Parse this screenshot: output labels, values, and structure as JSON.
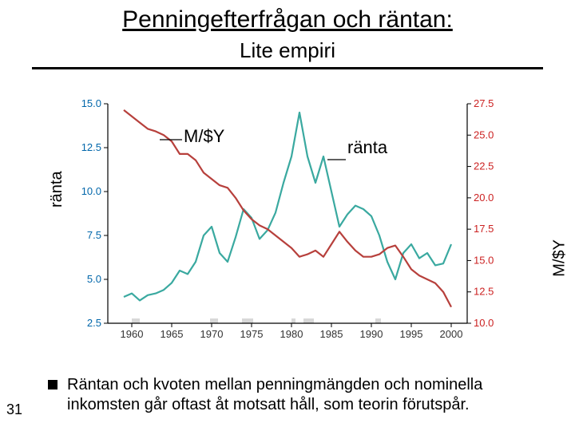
{
  "title": "Penningefterfrågan och räntan:",
  "subtitle": "Lite empiri",
  "page_number": "31",
  "bullet_text": "Räntan och kvoten mellan penningmängden och nominella inkomsten går oftast åt motsatt håll, som teorin förutspår.",
  "left_axis_label": "ränta",
  "right_axis_label": "M/$Y",
  "annotation_left": "M/$Y",
  "annotation_right": "ränta",
  "chart": {
    "type": "dual-axis-line",
    "background_color": "#ffffff",
    "axis_color": "#000000",
    "tick_font_size": 13,
    "x": {
      "min": 1957,
      "max": 2002,
      "ticks": [
        1960,
        1965,
        1970,
        1975,
        1980,
        1985,
        1990,
        1995,
        2000
      ]
    },
    "left_y": {
      "min": 2.5,
      "max": 15.0,
      "ticks": [
        2.5,
        5.0,
        7.5,
        10.0,
        12.5,
        15.0
      ],
      "label_color": "#0066aa"
    },
    "right_y": {
      "min": 10.0,
      "max": 27.5,
      "ticks": [
        10.0,
        12.5,
        15.0,
        17.5,
        20.0,
        22.5,
        25.0,
        27.5
      ],
      "label_color": "#cc2222"
    },
    "series": [
      {
        "name": "ranta",
        "axis": "left",
        "color": "#3aa9a0",
        "width": 2.2,
        "points": [
          [
            1959,
            4.0
          ],
          [
            1960,
            4.2
          ],
          [
            1961,
            3.8
          ],
          [
            1962,
            4.1
          ],
          [
            1963,
            4.2
          ],
          [
            1964,
            4.4
          ],
          [
            1965,
            4.8
          ],
          [
            1966,
            5.5
          ],
          [
            1967,
            5.3
          ],
          [
            1968,
            6.0
          ],
          [
            1969,
            7.5
          ],
          [
            1970,
            8.0
          ],
          [
            1971,
            6.5
          ],
          [
            1972,
            6.0
          ],
          [
            1973,
            7.4
          ],
          [
            1974,
            9.0
          ],
          [
            1975,
            8.5
          ],
          [
            1976,
            7.3
          ],
          [
            1977,
            7.8
          ],
          [
            1978,
            8.8
          ],
          [
            1979,
            10.5
          ],
          [
            1980,
            12.0
          ],
          [
            1981,
            14.5
          ],
          [
            1982,
            12.0
          ],
          [
            1983,
            10.5
          ],
          [
            1984,
            12.0
          ],
          [
            1985,
            10.0
          ],
          [
            1986,
            8.0
          ],
          [
            1987,
            8.7
          ],
          [
            1988,
            9.2
          ],
          [
            1989,
            9.0
          ],
          [
            1990,
            8.6
          ],
          [
            1991,
            7.5
          ],
          [
            1992,
            6.0
          ],
          [
            1993,
            5.0
          ],
          [
            1994,
            6.5
          ],
          [
            1995,
            7.0
          ],
          [
            1996,
            6.2
          ],
          [
            1997,
            6.5
          ],
          [
            1998,
            5.8
          ],
          [
            1999,
            5.9
          ],
          [
            2000,
            7.0
          ]
        ]
      },
      {
        "name": "m_over_dollar_y",
        "axis": "right",
        "color": "#b7403c",
        "width": 2.2,
        "points": [
          [
            1959,
            27.0
          ],
          [
            1960,
            26.5
          ],
          [
            1961,
            26.0
          ],
          [
            1962,
            25.5
          ],
          [
            1963,
            25.3
          ],
          [
            1964,
            25.0
          ],
          [
            1965,
            24.5
          ],
          [
            1966,
            23.5
          ],
          [
            1967,
            23.5
          ],
          [
            1968,
            23.0
          ],
          [
            1969,
            22.0
          ],
          [
            1970,
            21.5
          ],
          [
            1971,
            21.0
          ],
          [
            1972,
            20.8
          ],
          [
            1973,
            20.0
          ],
          [
            1974,
            19.0
          ],
          [
            1975,
            18.3
          ],
          [
            1976,
            17.8
          ],
          [
            1977,
            17.5
          ],
          [
            1978,
            17.0
          ],
          [
            1979,
            16.5
          ],
          [
            1980,
            16.0
          ],
          [
            1981,
            15.3
          ],
          [
            1982,
            15.5
          ],
          [
            1983,
            15.8
          ],
          [
            1984,
            15.3
          ],
          [
            1985,
            16.3
          ],
          [
            1986,
            17.3
          ],
          [
            1987,
            16.5
          ],
          [
            1988,
            15.8
          ],
          [
            1989,
            15.3
          ],
          [
            1990,
            15.3
          ],
          [
            1991,
            15.5
          ],
          [
            1992,
            16.0
          ],
          [
            1993,
            16.2
          ],
          [
            1994,
            15.3
          ],
          [
            1995,
            14.3
          ],
          [
            1996,
            13.8
          ],
          [
            1997,
            13.5
          ],
          [
            1998,
            13.2
          ],
          [
            1999,
            12.5
          ],
          [
            2000,
            11.3
          ]
        ]
      }
    ],
    "recession_bands": [
      [
        1960,
        1961
      ],
      [
        1969.8,
        1970.8
      ],
      [
        1973.8,
        1975.2
      ],
      [
        1980,
        1980.5
      ],
      [
        1981.5,
        1982.8
      ],
      [
        1990.5,
        1991.2
      ]
    ],
    "band_color": "#d8d8d8"
  }
}
